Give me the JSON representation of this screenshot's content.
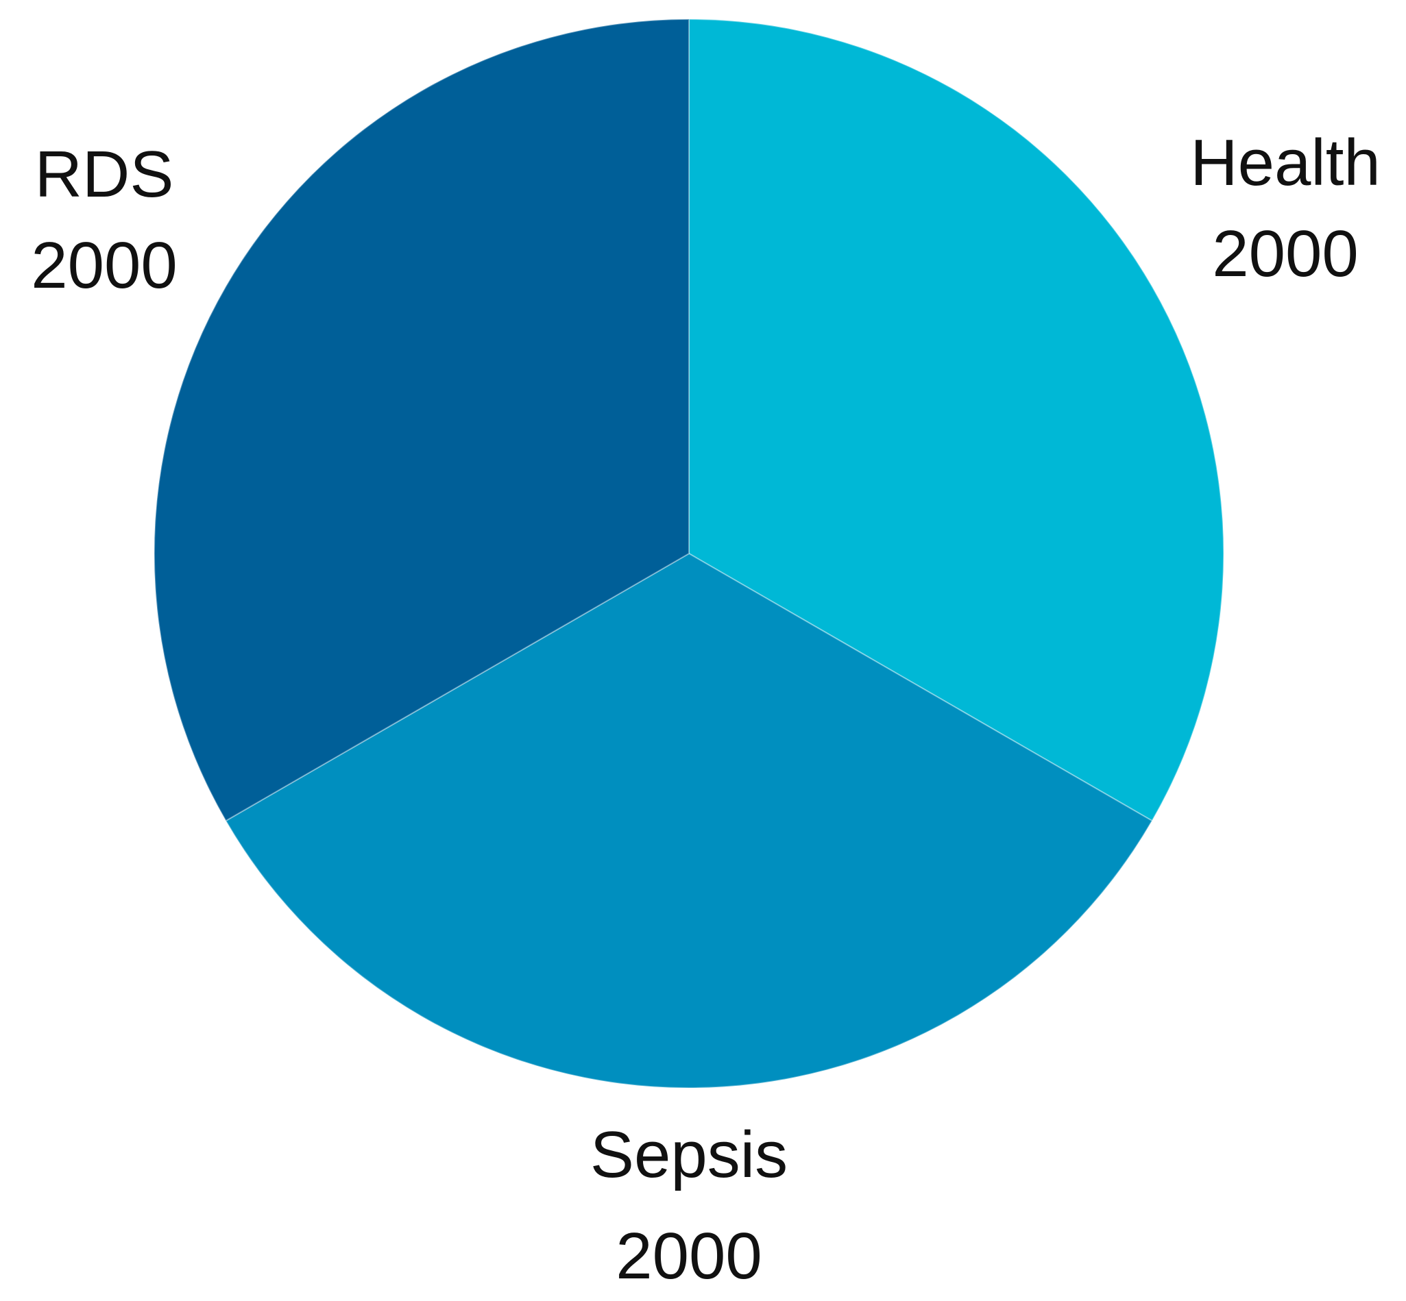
{
  "chart_data": {
    "type": "pie",
    "slices": [
      {
        "label": "Health",
        "value": 2000,
        "value_text": "2000",
        "color": "#00B8D6"
      },
      {
        "label": "Sepsis",
        "value": 2000,
        "value_text": "2000",
        "color": "#008FBF"
      },
      {
        "label": "RDS",
        "value": 2000,
        "value_text": "2000",
        "color": "#005F98"
      }
    ],
    "start_angle_deg": 0,
    "direction": "clockwise",
    "legend": "none"
  }
}
